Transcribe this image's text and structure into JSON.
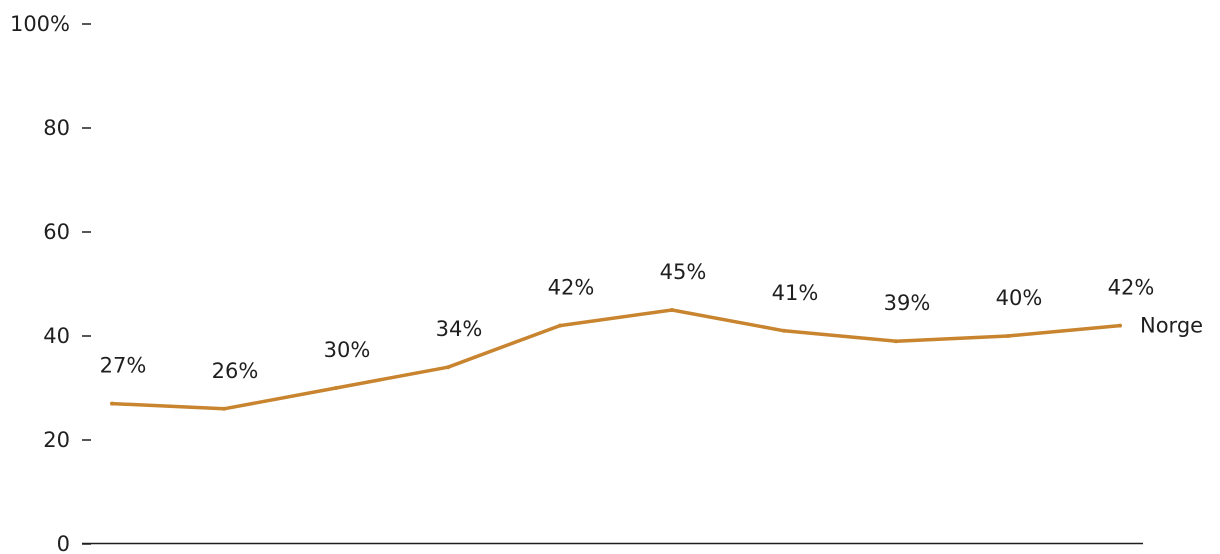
{
  "chart_data": {
    "type": "line",
    "title": "",
    "xlabel": "",
    "ylabel": "",
    "ylim": [
      0,
      100
    ],
    "y_ticks": [
      0,
      20,
      40,
      60,
      80,
      100
    ],
    "y_tick_labels": [
      "0",
      "20",
      "40",
      "60",
      "80",
      "100%"
    ],
    "grid": false,
    "series": [
      {
        "name": "Norge",
        "color": "#C8842F",
        "values": [
          27,
          26,
          30,
          34,
          42,
          45,
          41,
          39,
          40,
          42
        ],
        "value_labels": [
          "27%",
          "26%",
          "30%",
          "34%",
          "42%",
          "45%",
          "41%",
          "39%",
          "40%",
          "42%"
        ]
      }
    ]
  }
}
